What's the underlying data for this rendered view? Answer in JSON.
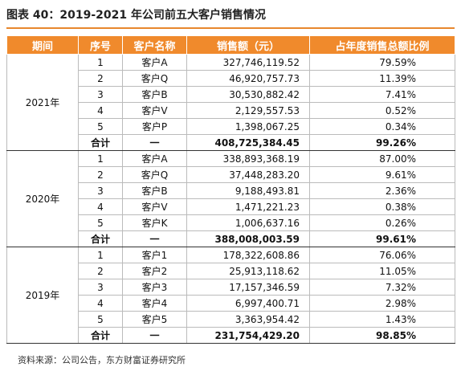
{
  "title": "图表 40：2019-2021 年公司前五大客户销售情况",
  "header": [
    "期间",
    "序号",
    "客户名称",
    "销售额（元）",
    "占年度销售总额比例"
  ],
  "groups": [
    {
      "period": "2021年",
      "rows": [
        [
          "1",
          "客户A",
          "327,746,119.52",
          "79.59%"
        ],
        [
          "2",
          "客户Q",
          "46,920,757.73",
          "11.39%"
        ],
        [
          "3",
          "客户B",
          "30,530,882.42",
          "7.41%"
        ],
        [
          "4",
          "客户V",
          "2,129,557.53",
          "0.52%"
        ],
        [
          "5",
          "客户P",
          "1,398,067.25",
          "0.34%"
        ]
      ],
      "total": [
        "合计",
        "一",
        "408,725,384.45",
        "99.26%"
      ]
    },
    {
      "period": "2020年",
      "rows": [
        [
          "1",
          "客户A",
          "338,893,368.19",
          "87.00%"
        ],
        [
          "2",
          "客户Q",
          "37,448,283.20",
          "9.61%"
        ],
        [
          "3",
          "客户B",
          "9,188,493.81",
          "2.36%"
        ],
        [
          "4",
          "客户V",
          "1,471,221.23",
          "0.38%"
        ],
        [
          "5",
          "客户K",
          "1,006,637.16",
          "0.26%"
        ]
      ],
      "total": [
        "合计",
        "一",
        "388,008,003.59",
        "99.61%"
      ]
    },
    {
      "period": "2019年",
      "rows": [
        [
          "1",
          "客户1",
          "178,322,608.86",
          "76.06%"
        ],
        [
          "2",
          "客户2",
          "25,913,118.62",
          "11.05%"
        ],
        [
          "3",
          "客户3",
          "17,157,346.59",
          "7.32%"
        ],
        [
          "4",
          "客户4",
          "6,997,400.71",
          "2.98%"
        ],
        [
          "5",
          "客户5",
          "3,363,954.42",
          "1.43%"
        ]
      ],
      "total": [
        "合计",
        "一",
        "231,754,429.20",
        "98.85%"
      ]
    }
  ],
  "source": "资料来源：公司公告，东方财富证券研究所"
}
